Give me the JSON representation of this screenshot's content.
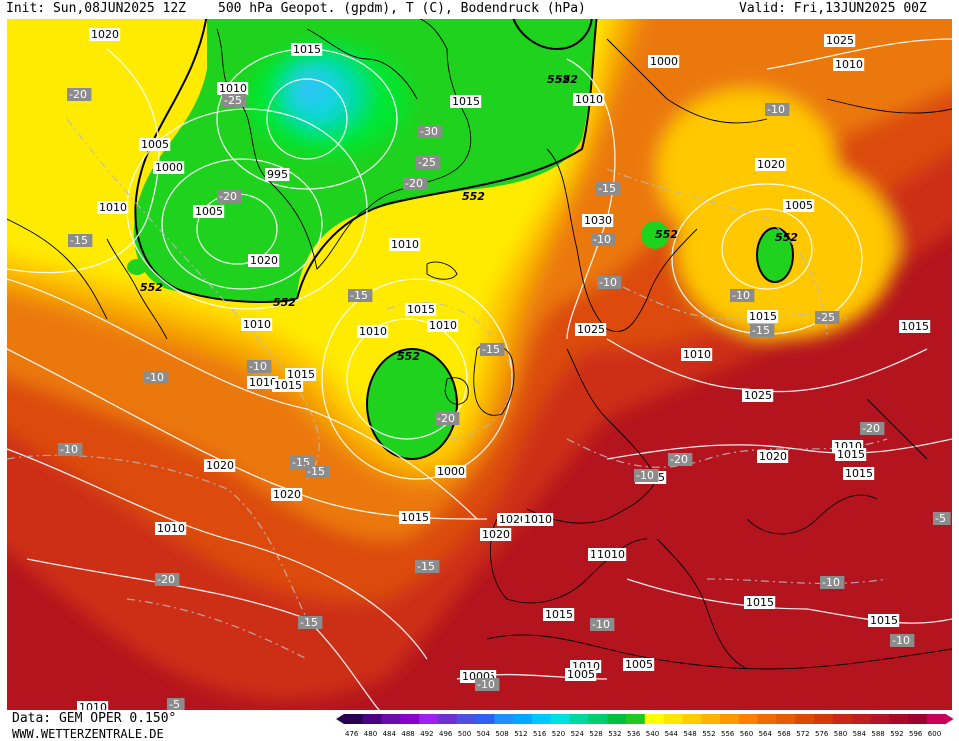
{
  "header": {
    "init": "Init: Sun,08JUN2025 12Z",
    "title": "500 hPa Geopot. (gpdm), T (C), Bodendruck (hPa)",
    "valid": "Valid: Fri,13JUN2025 00Z"
  },
  "footer": {
    "data_source": "Data: GEM OPER 0.150°",
    "website": "WWW.WETTERZENTRALE.DE"
  },
  "legend": {
    "values": [
      "476",
      "480",
      "484",
      "488",
      "492",
      "496",
      "500",
      "504",
      "508",
      "512",
      "516",
      "520",
      "524",
      "528",
      "532",
      "536",
      "540",
      "544",
      "548",
      "552",
      "556",
      "560",
      "564",
      "568",
      "572",
      "576",
      "580",
      "584",
      "588",
      "592",
      "596",
      "600"
    ],
    "colors": [
      "#2a0050",
      "#4b0082",
      "#6a0dad",
      "#8b00c9",
      "#a020f0",
      "#7030d0",
      "#5050e0",
      "#3060f0",
      "#1e90ff",
      "#00a8ff",
      "#00c8ff",
      "#00e0e0",
      "#00d8a0",
      "#00cc70",
      "#00c040",
      "#20c820",
      "#ffff00",
      "#ffe600",
      "#ffcc00",
      "#ffb300",
      "#ff9900",
      "#ff8000",
      "#f06a00",
      "#e65c00",
      "#dc4a00",
      "#d23a0a",
      "#c82814",
      "#be1e1e",
      "#b41428",
      "#a80a28",
      "#9c0030",
      "#c8005a"
    ]
  },
  "map": {
    "colors": {
      "deep_red": "#b4141e",
      "red": "#cd2d14",
      "red_orange": "#dc4b0f",
      "orange": "#eb780a",
      "light_orange": "#f5a000",
      "yellow_orange": "#ffc800",
      "yellow": "#ffeb00",
      "green": "#1ed21e",
      "bright_green": "#00e632",
      "cyan_green": "#00dca0",
      "cyan": "#14d2e6",
      "blue": "#3cb4ff"
    },
    "height_labels": [
      "552",
      "552",
      "552",
      "552",
      "552",
      "552",
      "552",
      "552"
    ],
    "pressure_labels": [
      "1020",
      "1015",
      "1010",
      "1005",
      "1000",
      "995",
      "1010",
      "1005",
      "1020",
      "1015",
      "1010",
      "1000",
      "1025",
      "1030",
      "1010",
      "1005",
      "1010",
      "1015",
      "1025",
      "1015",
      "1010",
      "1025",
      "1020",
      "1015",
      "1010",
      "1015",
      "1010",
      "1010",
      "1015",
      "1020",
      "1020",
      "1010",
      "1015",
      "1020",
      "1010",
      "1015",
      "1015",
      "1015",
      "1015",
      "1010",
      "1015",
      "1010",
      "1020",
      "1000",
      "1005",
      "1010",
      "1010",
      "1010",
      "1015",
      "1005",
      "1000",
      "1020",
      "1015",
      "1015"
    ],
    "temperature_labels": [
      "-20",
      "-25",
      "-30",
      "-25",
      "-20",
      "-20",
      "-15",
      "-15",
      "-10",
      "-10",
      "-10",
      "-15",
      "-20",
      "-15",
      "-15",
      "-10",
      "-10",
      "-10",
      "-10",
      "-15",
      "-25",
      "-20",
      "-20",
      "-15",
      "-20",
      "-15",
      "-15",
      "-10",
      "-10",
      "-10",
      "-10",
      "-10",
      "-5",
      "-5"
    ]
  }
}
